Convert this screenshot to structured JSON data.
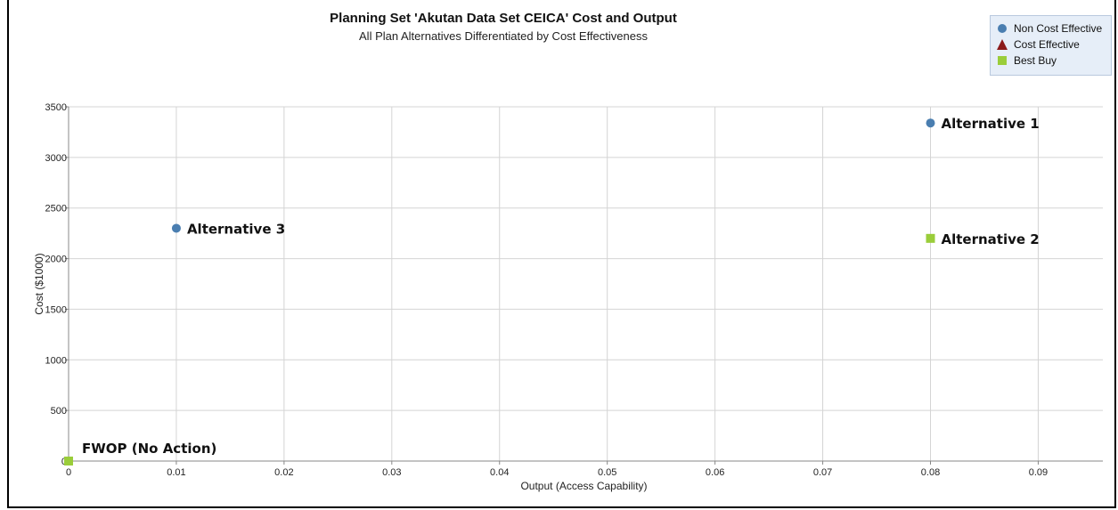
{
  "chart_data": {
    "type": "scatter",
    "title": "Planning Set 'Akutan Data Set CEICA' Cost and Output",
    "subtitle": "All Plan Alternatives Differentiated by Cost Effectiveness",
    "xlabel": "Output (Access Capability)",
    "ylabel": "Cost ($1000)",
    "xlim": [
      0,
      0.096
    ],
    "ylim": [
      0,
      3500
    ],
    "xticks": [
      "0",
      "0.01",
      "0.02",
      "0.03",
      "0.04",
      "0.05",
      "0.06",
      "0.07",
      "0.08",
      "0.09"
    ],
    "xtick_values": [
      0,
      0.01,
      0.02,
      0.03,
      0.04,
      0.05,
      0.06,
      0.07,
      0.08,
      0.09
    ],
    "yticks": [
      "0",
      "500",
      "1000",
      "1500",
      "2000",
      "2500",
      "3000",
      "3500"
    ],
    "ytick_values": [
      0,
      500,
      1000,
      1500,
      2000,
      2500,
      3000,
      3500
    ],
    "grid": true,
    "legend_position": "top-right",
    "series": [
      {
        "name": "Non Cost Effective",
        "marker": "circle",
        "color": "#4a7eb0",
        "points": [
          {
            "x": 0.08,
            "y": 3340,
            "label": "Alternative 1"
          },
          {
            "x": 0.01,
            "y": 2300,
            "label": "Alternative 3"
          }
        ]
      },
      {
        "name": "Cost Effective",
        "marker": "triangle",
        "color": "#8b1a1a",
        "points": []
      },
      {
        "name": "Best Buy",
        "marker": "square",
        "color": "#9acd3a",
        "points": [
          {
            "x": 0.08,
            "y": 2200,
            "label": "Alternative 2"
          },
          {
            "x": 0,
            "y": 0,
            "label": "FWOP (No Action)"
          }
        ]
      }
    ]
  }
}
